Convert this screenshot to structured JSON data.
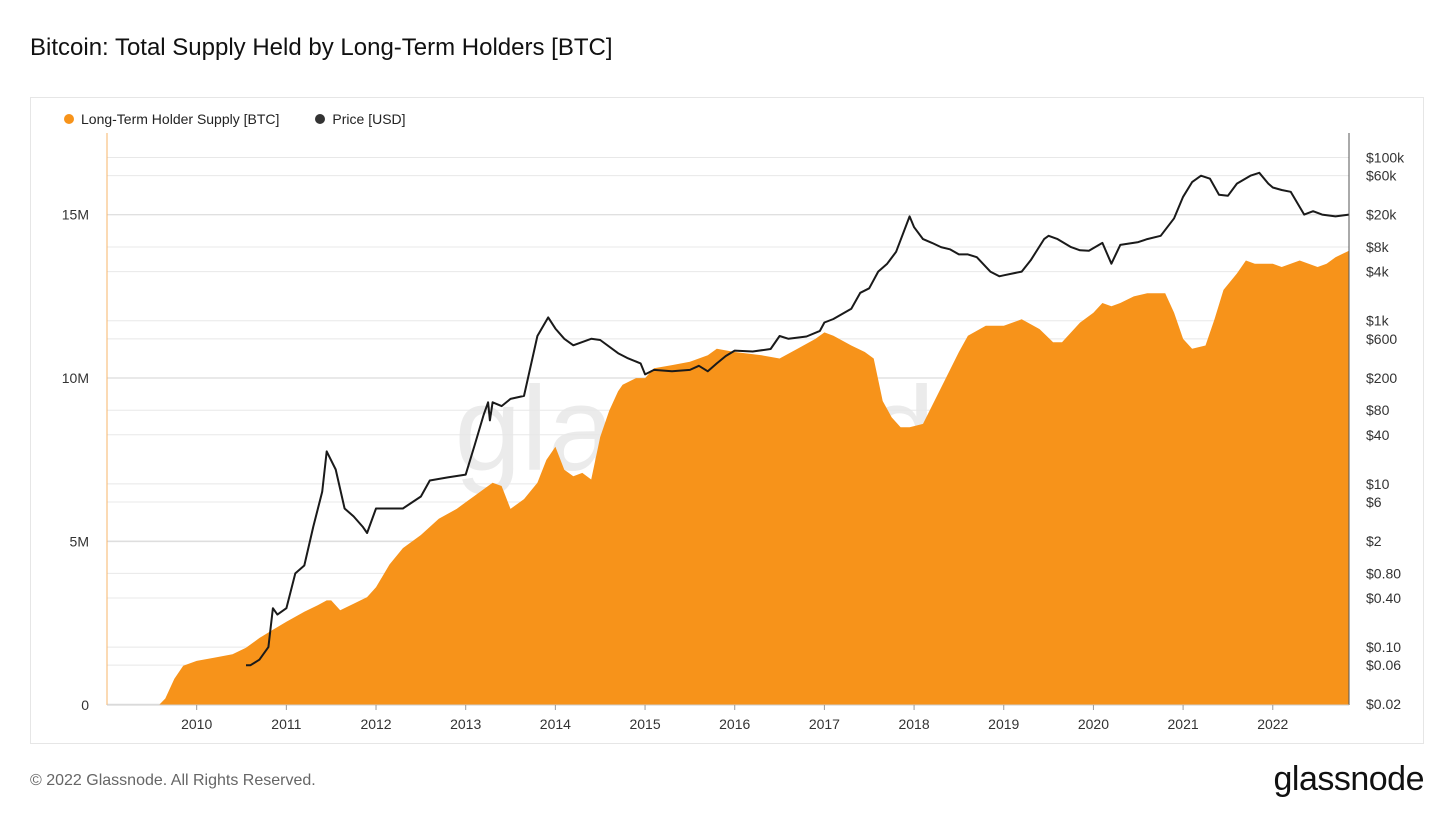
{
  "title": "Bitcoin: Total Supply Held by Long-Term Holders [BTC]",
  "footer": "© 2022 Glassnode. All Rights Reserved.",
  "brand": "glassnode",
  "colors": {
    "supply": "#f7931a",
    "price": "#1a1a1a",
    "grid": "#e8e8e8",
    "axis": "#f7b46a"
  },
  "legend": [
    {
      "label": "Long-Term Holder Supply [BTC]",
      "color": "#f7931a",
      "icon": "orange-dot-icon"
    },
    {
      "label": "Price [USD]",
      "color": "#333333",
      "icon": "dark-dot-icon"
    }
  ],
  "chart_data": {
    "type": "area",
    "grid": true,
    "legend_position": "top-left",
    "x_ticks": [
      "2010",
      "2011",
      "2012",
      "2013",
      "2014",
      "2015",
      "2016",
      "2017",
      "2018",
      "2019",
      "2020",
      "2021",
      "2022"
    ],
    "xlim": [
      2009.0,
      2022.85
    ],
    "y_left_ticks": [
      {
        "label": "0",
        "v": 0
      },
      {
        "label": "5M",
        "v": 5000000
      },
      {
        "label": "10M",
        "v": 10000000
      },
      {
        "label": "15M",
        "v": 15000000
      }
    ],
    "y_left_lim": [
      0,
      17500000
    ],
    "y_right_scale": "log",
    "y_right_lim": [
      0.0195,
      200000
    ],
    "y_right_ticks": [
      {
        "label": "$0.02",
        "v": 0.02
      },
      {
        "label": "$0.06",
        "v": 0.06
      },
      {
        "label": "$0.10",
        "v": 0.1
      },
      {
        "label": "$0.40",
        "v": 0.4
      },
      {
        "label": "$0.80",
        "v": 0.8
      },
      {
        "label": "$2",
        "v": 2
      },
      {
        "label": "$6",
        "v": 6
      },
      {
        "label": "$10",
        "v": 10
      },
      {
        "label": "$40",
        "v": 40
      },
      {
        "label": "$80",
        "v": 80
      },
      {
        "label": "$200",
        "v": 200
      },
      {
        "label": "$600",
        "v": 600
      },
      {
        "label": "$1k",
        "v": 1000
      },
      {
        "label": "$4k",
        "v": 4000
      },
      {
        "label": "$8k",
        "v": 8000
      },
      {
        "label": "$20k",
        "v": 20000
      },
      {
        "label": "$60k",
        "v": 60000
      },
      {
        "label": "$100k",
        "v": 100000
      }
    ],
    "series": [
      {
        "name": "Long-Term Holder Supply [BTC]",
        "axis": "left",
        "x": [
          2009.58,
          2009.65,
          2009.75,
          2009.85,
          2010.0,
          2010.2,
          2010.4,
          2010.55,
          2010.7,
          2010.85,
          2011.0,
          2011.2,
          2011.35,
          2011.45,
          2011.5,
          2011.6,
          2011.75,
          2011.9,
          2012.0,
          2012.15,
          2012.3,
          2012.5,
          2012.7,
          2012.9,
          2013.0,
          2013.1,
          2013.25,
          2013.3,
          2013.4,
          2013.5,
          2013.65,
          2013.8,
          2013.9,
          2014.0,
          2014.1,
          2014.2,
          2014.3,
          2014.4,
          2014.5,
          2014.6,
          2014.7,
          2014.75,
          2014.9,
          2015.0,
          2015.1,
          2015.3,
          2015.5,
          2015.7,
          2015.8,
          2016.0,
          2016.3,
          2016.5,
          2016.7,
          2016.9,
          2017.0,
          2017.1,
          2017.3,
          2017.45,
          2017.55,
          2017.65,
          2017.75,
          2017.85,
          2017.95,
          2018.1,
          2018.3,
          2018.5,
          2018.6,
          2018.8,
          2019.0,
          2019.2,
          2019.4,
          2019.55,
          2019.65,
          2019.85,
          2020.0,
          2020.1,
          2020.2,
          2020.3,
          2020.45,
          2020.6,
          2020.8,
          2020.9,
          2021.0,
          2021.1,
          2021.25,
          2021.35,
          2021.45,
          2021.6,
          2021.7,
          2021.8,
          2021.9,
          2022.0,
          2022.1,
          2022.3,
          2022.5,
          2022.6,
          2022.7,
          2022.85
        ],
        "values": [
          0,
          200000,
          800000,
          1200000,
          1350000,
          1450000,
          1550000,
          1750000,
          2050000,
          2300000,
          2550000,
          2850000,
          3050000,
          3200000,
          3200000,
          2900000,
          3100000,
          3300000,
          3600000,
          4300000,
          4800000,
          5200000,
          5700000,
          6000000,
          6200000,
          6400000,
          6700000,
          6800000,
          6700000,
          6000000,
          6300000,
          6800000,
          7500000,
          7900000,
          7200000,
          7000000,
          7100000,
          6900000,
          8200000,
          9000000,
          9600000,
          9800000,
          10000000,
          10000000,
          10300000,
          10400000,
          10500000,
          10700000,
          10900000,
          10800000,
          10700000,
          10600000,
          10900000,
          11200000,
          11400000,
          11300000,
          11000000,
          10800000,
          10600000,
          9300000,
          8800000,
          8500000,
          8500000,
          8600000,
          9700000,
          10800000,
          11300000,
          11600000,
          11600000,
          11800000,
          11500000,
          11100000,
          11100000,
          11700000,
          12000000,
          12300000,
          12200000,
          12300000,
          12500000,
          12600000,
          12600000,
          12000000,
          11200000,
          10900000,
          11000000,
          11800000,
          12700000,
          13200000,
          13600000,
          13500000,
          13500000,
          13500000,
          13400000,
          13600000,
          13400000,
          13500000,
          13700000,
          13900000
        ]
      },
      {
        "name": "Price [USD]",
        "axis": "right",
        "x": [
          2010.55,
          2010.6,
          2010.7,
          2010.8,
          2010.85,
          2010.9,
          2011.0,
          2011.1,
          2011.2,
          2011.3,
          2011.4,
          2011.45,
          2011.55,
          2011.65,
          2011.75,
          2011.85,
          2011.9,
          2012.0,
          2012.1,
          2012.3,
          2012.5,
          2012.6,
          2012.8,
          2013.0,
          2013.1,
          2013.2,
          2013.25,
          2013.27,
          2013.3,
          2013.4,
          2013.5,
          2013.65,
          2013.8,
          2013.92,
          2014.0,
          2014.1,
          2014.2,
          2014.4,
          2014.5,
          2014.7,
          2014.8,
          2014.95,
          2015.0,
          2015.1,
          2015.3,
          2015.5,
          2015.6,
          2015.7,
          2015.8,
          2015.9,
          2016.0,
          2016.2,
          2016.4,
          2016.5,
          2016.6,
          2016.8,
          2016.95,
          2017.0,
          2017.1,
          2017.3,
          2017.4,
          2017.5,
          2017.6,
          2017.7,
          2017.8,
          2017.95,
          2018.0,
          2018.1,
          2018.2,
          2018.3,
          2018.4,
          2018.5,
          2018.6,
          2018.7,
          2018.85,
          2018.95,
          2019.0,
          2019.2,
          2019.3,
          2019.45,
          2019.5,
          2019.6,
          2019.75,
          2019.85,
          2019.95,
          2020.1,
          2020.2,
          2020.3,
          2020.5,
          2020.6,
          2020.75,
          2020.9,
          2021.0,
          2021.1,
          2021.2,
          2021.3,
          2021.4,
          2021.5,
          2021.6,
          2021.75,
          2021.85,
          2021.95,
          2022.0,
          2022.1,
          2022.2,
          2022.35,
          2022.45,
          2022.55,
          2022.7,
          2022.85
        ],
        "values": [
          0.06,
          0.06,
          0.07,
          0.1,
          0.3,
          0.25,
          0.3,
          0.8,
          1,
          3,
          8,
          25,
          15,
          5,
          4,
          3,
          2.5,
          5,
          5,
          5,
          7,
          11,
          12,
          13,
          30,
          70,
          100,
          60,
          100,
          90,
          110,
          120,
          650,
          1100,
          800,
          600,
          500,
          600,
          580,
          400,
          350,
          300,
          220,
          250,
          240,
          250,
          280,
          240,
          300,
          370,
          430,
          420,
          450,
          650,
          600,
          640,
          750,
          950,
          1050,
          1400,
          2200,
          2500,
          4000,
          5000,
          7000,
          19000,
          14000,
          10000,
          9000,
          8000,
          7500,
          6500,
          6500,
          6000,
          4000,
          3500,
          3600,
          4000,
          5500,
          10000,
          11000,
          10000,
          8000,
          7300,
          7200,
          9000,
          5000,
          8500,
          9200,
          10000,
          11000,
          18000,
          33000,
          50000,
          60000,
          55000,
          35000,
          34000,
          48000,
          60000,
          65000,
          48000,
          43000,
          40000,
          38000,
          20000,
          22000,
          20000,
          19000,
          20000
        ]
      }
    ]
  }
}
